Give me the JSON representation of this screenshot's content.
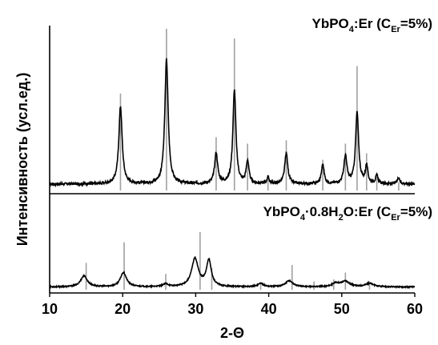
{
  "chart_data": {
    "type": "line",
    "xlabel": "2-Θ",
    "ylabel": "Интенсивность (усл.ед.)",
    "xlim": [
      10,
      60
    ],
    "xticks": [
      10,
      20,
      30,
      40,
      50,
      60
    ],
    "grid": false,
    "panels": [
      {
        "label_main": "YbPO",
        "label_sub1": "4",
        "label_mid": ":Er (C",
        "label_sub2": "Er",
        "label_end": "=5%)",
        "ylim": [
          0,
          100
        ],
        "baseline": 4,
        "peaks": [
          {
            "x": 19.7,
            "y": 48,
            "w": 0.55
          },
          {
            "x": 26.0,
            "y": 77,
            "w": 0.55
          },
          {
            "x": 32.8,
            "y": 19,
            "w": 0.5
          },
          {
            "x": 35.3,
            "y": 58,
            "w": 0.5
          },
          {
            "x": 37.1,
            "y": 14,
            "w": 0.45
          },
          {
            "x": 39.9,
            "y": 4,
            "w": 0.4
          },
          {
            "x": 42.4,
            "y": 19,
            "w": 0.5
          },
          {
            "x": 47.4,
            "y": 12,
            "w": 0.45
          },
          {
            "x": 50.5,
            "y": 17,
            "w": 0.5
          },
          {
            "x": 52.1,
            "y": 44,
            "w": 0.5
          },
          {
            "x": 53.4,
            "y": 11,
            "w": 0.4
          },
          {
            "x": 54.8,
            "y": 5,
            "w": 0.4
          },
          {
            "x": 57.8,
            "y": 4,
            "w": 0.4
          }
        ],
        "reference_lines": [
          {
            "x": 19.7,
            "y": 60
          },
          {
            "x": 26.0,
            "y": 100
          },
          {
            "x": 32.8,
            "y": 33
          },
          {
            "x": 35.3,
            "y": 94
          },
          {
            "x": 37.1,
            "y": 29
          },
          {
            "x": 39.9,
            "y": 7
          },
          {
            "x": 42.4,
            "y": 31
          },
          {
            "x": 47.4,
            "y": 19
          },
          {
            "x": 50.5,
            "y": 29
          },
          {
            "x": 52.1,
            "y": 77
          },
          {
            "x": 53.4,
            "y": 23
          },
          {
            "x": 54.8,
            "y": 9
          },
          {
            "x": 57.8,
            "y": 5
          }
        ]
      },
      {
        "label_main": "YbPO",
        "label_sub1": "4",
        "label_mid": "·0.8H",
        "label_sub2": "2",
        "label_end": "O:Er (C",
        "label_sub3": "Er",
        "label_end2": "=5%)",
        "ylim": [
          0,
          100
        ],
        "baseline": 4,
        "peaks": [
          {
            "x": 14.7,
            "y": 16,
            "w": 1.1
          },
          {
            "x": 20.1,
            "y": 21,
            "w": 1.0
          },
          {
            "x": 25.9,
            "y": 4,
            "w": 0.9
          },
          {
            "x": 29.9,
            "y": 41,
            "w": 1.1
          },
          {
            "x": 31.8,
            "y": 38,
            "w": 0.8
          },
          {
            "x": 38.9,
            "y": 5,
            "w": 0.9
          },
          {
            "x": 42.8,
            "y": 9,
            "w": 1.2
          },
          {
            "x": 49.2,
            "y": 5,
            "w": 1.2
          },
          {
            "x": 50.5,
            "y": 8,
            "w": 1.3
          },
          {
            "x": 53.8,
            "y": 5,
            "w": 1.4
          }
        ],
        "reference_lines": [
          {
            "x": 15.0,
            "y": 39
          },
          {
            "x": 20.2,
            "y": 69
          },
          {
            "x": 25.9,
            "y": 23
          },
          {
            "x": 30.6,
            "y": 84
          },
          {
            "x": 32.2,
            "y": 32
          },
          {
            "x": 38.9,
            "y": 11
          },
          {
            "x": 43.2,
            "y": 36
          },
          {
            "x": 46.2,
            "y": 12
          },
          {
            "x": 48.9,
            "y": 15
          },
          {
            "x": 50.5,
            "y": 25
          },
          {
            "x": 53.8,
            "y": 12
          }
        ]
      }
    ],
    "colors": {
      "curve": "#000000",
      "reference": "#a0a0a0",
      "axis": "#000000"
    }
  }
}
